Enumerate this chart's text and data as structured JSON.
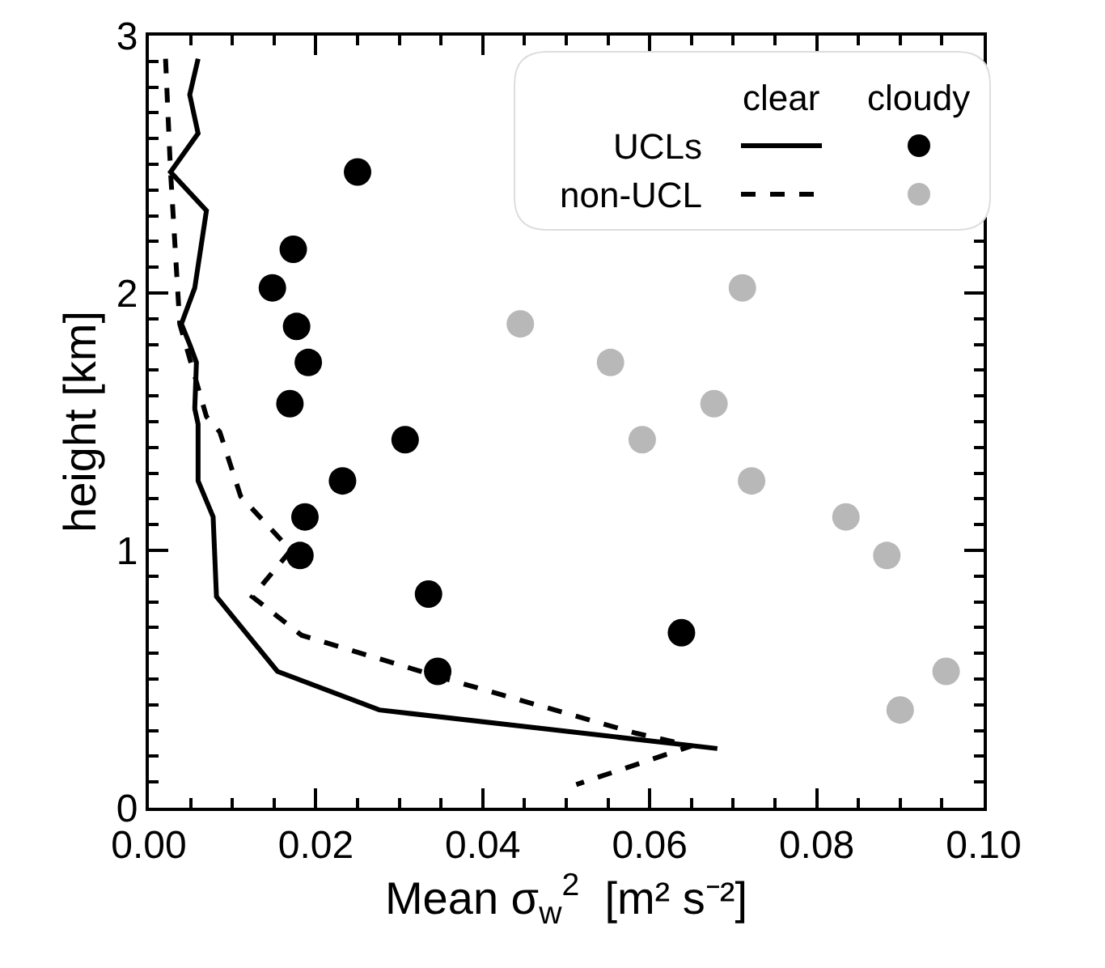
{
  "chart_data": {
    "type": "line",
    "xlabel": "Mean σ$_{w}$$^{2}$  [m² s⁻²]",
    "ylabel": "height [km]",
    "xlim": [
      0,
      0.1
    ],
    "ylim": [
      0,
      3
    ],
    "xticks": [
      {
        "value": 0,
        "label": "0.00"
      },
      {
        "value": 0.02,
        "label": "0.02"
      },
      {
        "value": 0.04,
        "label": "0.04"
      },
      {
        "value": 0.06,
        "label": "0.06"
      },
      {
        "value": 0.08,
        "label": "0.08"
      },
      {
        "value": 0.1,
        "label": "0.10"
      }
    ],
    "yticks": [
      0,
      1,
      2,
      3
    ],
    "legend": "top right",
    "annotations": [
      "clear",
      "cloudy"
    ],
    "series": [
      {
        "name": "UCLs",
        "line_style": "solid",
        "marker": "none",
        "color": "#000000",
        "x": [
          0.0059,
          0.0049,
          0.0059,
          0.0026,
          0.0069,
          0.0055,
          0.0039,
          0.0049,
          0.0057,
          0.0055,
          0.0059,
          0.0059,
          0.0077,
          0.0081,
          0.0154,
          0.0276,
          0.0681
        ],
        "values": [
          2.91,
          2.77,
          2.62,
          2.47,
          2.32,
          2.02,
          1.88,
          1.8,
          1.73,
          1.55,
          1.49,
          1.27,
          1.13,
          0.82,
          0.53,
          0.38,
          0.23
        ]
      },
      {
        "name": "non-UCL",
        "line_style": "dashed",
        "marker": "none",
        "color": "#000000",
        "x": [
          0.002,
          0.0026,
          0.0037,
          0.0069,
          0.0085,
          0.011,
          0.017,
          0.0124,
          0.0183,
          0.0346,
          0.0583,
          0.065,
          0.0512
        ],
        "values": [
          2.91,
          2.47,
          1.88,
          1.52,
          1.46,
          1.21,
          1.0,
          0.82,
          0.67,
          0.51,
          0.29,
          0.24,
          0.09
        ]
      },
      {
        "type": "scatter",
        "marker": "circle",
        "color": "#000000",
        "x": [
          0.025,
          0.0173,
          0.0148,
          0.0177,
          0.0191,
          0.0169,
          0.0307,
          0.0232,
          0.0187,
          0.0181,
          0.0335,
          0.0638,
          0.0346
        ],
        "values": [
          2.47,
          2.17,
          2.02,
          1.87,
          1.73,
          1.57,
          1.43,
          1.27,
          1.13,
          0.98,
          0.83,
          0.68,
          0.53
        ]
      },
      {
        "type": "scatter",
        "marker": "circle",
        "color": "#b8b8b8",
        "x": [
          0.0711,
          0.0445,
          0.0553,
          0.0677,
          0.0591,
          0.0722,
          0.0835,
          0.0884,
          0.0955,
          0.09
        ],
        "values": [
          2.02,
          1.88,
          1.73,
          1.57,
          1.43,
          1.27,
          1.13,
          0.98,
          0.53,
          0.38
        ]
      }
    ]
  }
}
